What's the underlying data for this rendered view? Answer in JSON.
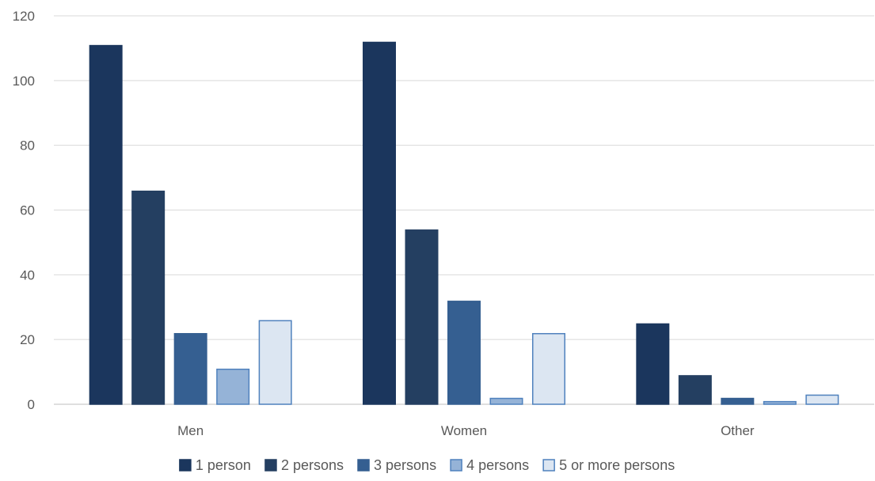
{
  "chart_data": {
    "type": "bar",
    "title": "",
    "xlabel": "",
    "ylabel": "",
    "ylim": [
      0,
      120
    ],
    "yticks": [
      0,
      20,
      40,
      60,
      80,
      100,
      120
    ],
    "grid": true,
    "legend_position": "bottom",
    "categories": [
      "Men",
      "Women",
      "Other"
    ],
    "series": [
      {
        "name": "1 person",
        "values": [
          111,
          112,
          25
        ],
        "color": "#1b365d",
        "border": "#1b365d"
      },
      {
        "name": "2 persons",
        "values": [
          66,
          54,
          9
        ],
        "color": "#243f61",
        "border": "#243f61"
      },
      {
        "name": "3 persons",
        "values": [
          22,
          32,
          2
        ],
        "color": "#355f91",
        "border": "#355f91"
      },
      {
        "name": "4 persons",
        "values": [
          11,
          2,
          1
        ],
        "color": "#95b3d7",
        "border": "#4f81bd"
      },
      {
        "name": "5 or more persons",
        "values": [
          26,
          22,
          3
        ],
        "color": "#dce6f2",
        "border": "#4f81bd"
      }
    ]
  }
}
